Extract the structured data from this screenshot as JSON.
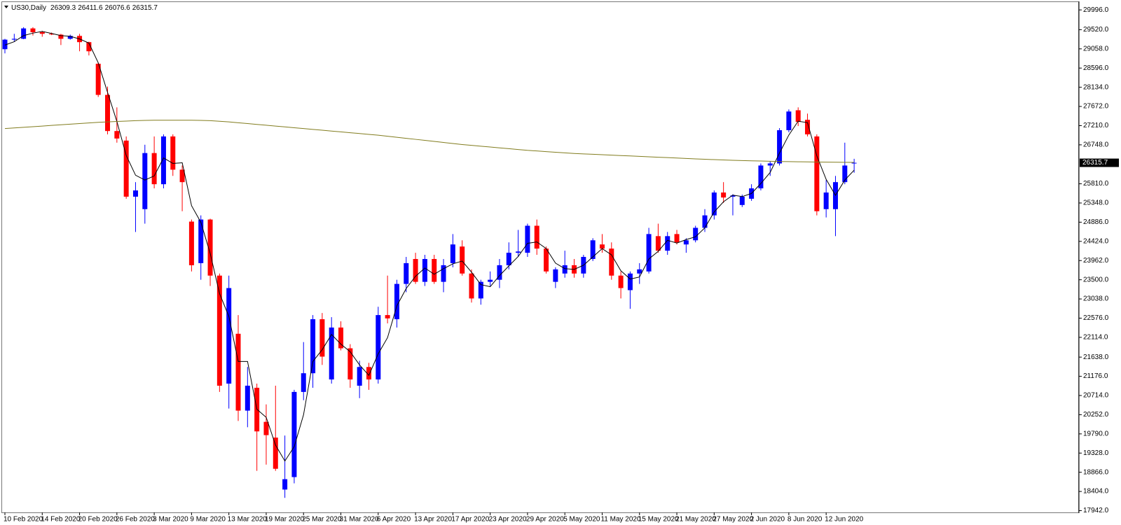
{
  "chart_data": {
    "type": "candlestick",
    "title": "US30,Daily",
    "categories": [
      "10 Feb 2020",
      null,
      null,
      null,
      "14 Feb 2020",
      null,
      null,
      null,
      "20 Feb 2020",
      null,
      null,
      null,
      "26 Feb 2020",
      null,
      null,
      null,
      "3 Mar 2020",
      null,
      null,
      null,
      "9 Mar 2020",
      null,
      null,
      null,
      "13 Mar 2020",
      null,
      null,
      null,
      "19 Mar 2020",
      null,
      null,
      null,
      "25 Mar 2020",
      null,
      null,
      null,
      "31 Mar 2020",
      null,
      null,
      null,
      "6 Apr 2020",
      null,
      null,
      null,
      "13 Apr 2020",
      null,
      null,
      null,
      "17 Apr 2020",
      null,
      null,
      null,
      "23 Apr 2020",
      null,
      null,
      null,
      "29 Apr 2020",
      null,
      null,
      null,
      "5 May 2020",
      null,
      null,
      null,
      "11 May 2020",
      null,
      null,
      null,
      "15 May 2020",
      null,
      null,
      null,
      "21 May 2020",
      null,
      null,
      null,
      "27 May 2020",
      null,
      null,
      null,
      "2 Jun 2020",
      null,
      null,
      null,
      "8 Jun 2020",
      null,
      null,
      null,
      "12 Jun 2020",
      null,
      null,
      null
    ],
    "open": [
      29050,
      29280,
      29300,
      29550,
      29460,
      29420,
      29400,
      29300,
      29370,
      29220,
      28700,
      27950,
      27080,
      26850,
      25500,
      25200,
      26550,
      25800,
      26950,
      26150,
      24900,
      23900,
      24950,
      23600,
      21000,
      22200,
      20350,
      20900,
      20080,
      19700,
      18450,
      18750,
      20800,
      21250,
      22550,
      21100,
      22350,
      21850,
      20950,
      21400,
      21100,
      22650,
      22550,
      23400,
      24000,
      23450,
      24000,
      23450,
      23900,
      24300,
      23650,
      23050,
      23450,
      23500,
      23850,
      24150,
      24150,
      24800,
      24250,
      23450,
      23650,
      23850,
      23650,
      24000,
      24350,
      24250,
      23600,
      23250,
      23650,
      23700,
      24550,
      24200,
      24600,
      24350,
      24450,
      24750,
      25050,
      25600,
      25500,
      25300,
      25450,
      25700,
      26250,
      26300,
      27100,
      27580,
      27350,
      26950,
      25200,
      25200,
      25850,
      26309.3
    ],
    "high": [
      29300,
      29420,
      29580,
      29580,
      29490,
      29450,
      29420,
      29400,
      29420,
      29230,
      28720,
      28150,
      27650,
      26950,
      25850,
      26750,
      26950,
      27000,
      27000,
      26250,
      24950,
      25050,
      24970,
      23650,
      23600,
      22650,
      21400,
      21000,
      20500,
      20950,
      19750,
      20850,
      22000,
      22650,
      22700,
      22600,
      22500,
      21950,
      21550,
      21500,
      22850,
      23600,
      23500,
      24050,
      24150,
      24100,
      24100,
      24000,
      24600,
      24450,
      23750,
      23500,
      23700,
      24000,
      24400,
      24700,
      24850,
      24950,
      24300,
      23800,
      24200,
      24000,
      24100,
      24500,
      24600,
      24400,
      23700,
      23700,
      23900,
      24750,
      24850,
      24650,
      24700,
      24500,
      24800,
      25200,
      25650,
      25850,
      25560,
      25550,
      25800,
      26300,
      26350,
      27150,
      27600,
      27650,
      27500,
      27000,
      25900,
      26000,
      26800,
      26411.6
    ],
    "low": [
      28950,
      29230,
      29290,
      29380,
      29350,
      29390,
      29150,
      29280,
      29000,
      28900,
      27900,
      27000,
      26800,
      25450,
      24650,
      24850,
      25700,
      25700,
      26000,
      25150,
      23700,
      23500,
      23350,
      20800,
      20400,
      20100,
      19950,
      18900,
      19050,
      18900,
      18250,
      18600,
      20600,
      20900,
      21450,
      21000,
      21800,
      20900,
      20650,
      20850,
      21000,
      22450,
      22350,
      23200,
      23400,
      23350,
      23400,
      23200,
      23800,
      23600,
      22950,
      22900,
      23350,
      23300,
      23750,
      24050,
      24050,
      24100,
      23650,
      23300,
      23550,
      23550,
      23550,
      23950,
      24150,
      23500,
      23050,
      22800,
      23400,
      23650,
      24150,
      24100,
      24350,
      24150,
      24400,
      24650,
      24950,
      25350,
      25050,
      25250,
      25400,
      25650,
      26000,
      26250,
      27050,
      27200,
      26950,
      25050,
      25000,
      24550,
      25800,
      26076.6
    ],
    "close": [
      29280,
      29300,
      29550,
      29460,
      29420,
      29410,
      29300,
      29370,
      29220,
      29000,
      27950,
      27080,
      26900,
      25500,
      25650,
      26550,
      25800,
      26950,
      26150,
      25850,
      23850,
      24950,
      23600,
      20950,
      23300,
      20350,
      20950,
      19850,
      19760,
      18950,
      18700,
      20800,
      21250,
      22550,
      21650,
      22350,
      21850,
      21100,
      21400,
      21100,
      22650,
      22570,
      23400,
      23900,
      23450,
      24000,
      23450,
      23850,
      24350,
      23650,
      23050,
      23450,
      23500,
      23850,
      24150,
      24180,
      24800,
      24250,
      23700,
      23750,
      23850,
      23650,
      24050,
      24450,
      24250,
      23600,
      23300,
      23650,
      23750,
      24600,
      24200,
      24550,
      24400,
      24450,
      24750,
      25050,
      25600,
      25480,
      25530,
      25500,
      25700,
      26250,
      26300,
      27100,
      27550,
      27300,
      27000,
      25150,
      25600,
      25850,
      26250,
      26315.7
    ],
    "up_color": "#0000ff",
    "down_color": "#ff0000",
    "overlays": [
      {
        "color": "#000000",
        "values": [
          29150,
          29230,
          29377,
          29437,
          29477,
          29430,
          29377,
          29360,
          29297,
          29197,
          28723,
          28010,
          27310,
          26493,
          26017,
          25900,
          26000,
          26433,
          26300,
          26317,
          25283,
          24883,
          24133,
          23167,
          22617,
          21533,
          21533,
          20383,
          20187,
          19520,
          19137,
          19483,
          20250,
          21533,
          21817,
          22183,
          21950,
          21767,
          21450,
          21200,
          21717,
          22107,
          22873,
          23290,
          23583,
          23783,
          23633,
          23767,
          23883,
          23950,
          23683,
          23383,
          23333,
          23600,
          23833,
          24060,
          24377,
          24410,
          24250,
          23900,
          23767,
          23750,
          23850,
          24050,
          24250,
          24100,
          23717,
          23517,
          23567,
          24000,
          24183,
          24450,
          24383,
          24467,
          24533,
          24750,
          25133,
          25377,
          25537,
          25503,
          25577,
          25817,
          26083,
          26550,
          26983,
          27317,
          27283,
          26483,
          25917,
          25533,
          25900,
          26139
        ]
      },
      {
        "color": "#817c1e",
        "values": [
          27140,
          27155,
          27170,
          27185,
          27200,
          27215,
          27230,
          27245,
          27260,
          27275,
          27290,
          27300,
          27310,
          27320,
          27330,
          27335,
          27340,
          27340,
          27340,
          27340,
          27340,
          27335,
          27330,
          27315,
          27300,
          27280,
          27260,
          27240,
          27220,
          27200,
          27180,
          27160,
          27140,
          27120,
          27100,
          27080,
          27060,
          27040,
          27020,
          27000,
          26980,
          26955,
          26930,
          26905,
          26880,
          26855,
          26830,
          26805,
          26780,
          26755,
          26735,
          26715,
          26695,
          26675,
          26655,
          26635,
          26615,
          26600,
          26585,
          26570,
          26555,
          26540,
          26530,
          26520,
          26510,
          26500,
          26490,
          26480,
          26470,
          26460,
          26450,
          26440,
          26430,
          26420,
          26410,
          26400,
          26392,
          26384,
          26376,
          26370,
          26364,
          26358,
          26352,
          26347,
          26343,
          26340,
          26337,
          26334,
          26332,
          26330,
          26328,
          26326
        ]
      }
    ],
    "ylim": [
      17900,
      30150
    ],
    "yticks": [
      {
        "value": 29996,
        "label": "29996.0"
      },
      {
        "value": 29520,
        "label": "29520.0"
      },
      {
        "value": 29058,
        "label": "29058.0"
      },
      {
        "value": 28596,
        "label": "28596.0"
      },
      {
        "value": 28134,
        "label": "28134.0"
      },
      {
        "value": 27672,
        "label": "27672.0"
      },
      {
        "value": 27210,
        "label": "27210.0"
      },
      {
        "value": 26748,
        "label": "26748.0"
      },
      {
        "value": 25810,
        "label": "25810.0"
      },
      {
        "value": 25348,
        "label": "25348.0"
      },
      {
        "value": 24886,
        "label": "24886.0"
      },
      {
        "value": 24424,
        "label": "24424.0"
      },
      {
        "value": 23962,
        "label": "23962.0"
      },
      {
        "value": 23500,
        "label": "23500.0"
      },
      {
        "value": 23038,
        "label": "23038.0"
      },
      {
        "value": 22576,
        "label": "22576.0"
      },
      {
        "value": 22114,
        "label": "22114.0"
      },
      {
        "value": 21638,
        "label": "21638.0"
      },
      {
        "value": 21176,
        "label": "21176.0"
      },
      {
        "value": 20714,
        "label": "20714.0"
      },
      {
        "value": 20252,
        "label": "20252.0"
      },
      {
        "value": 19790,
        "label": "19790.0"
      },
      {
        "value": 19328,
        "label": "19328.0"
      },
      {
        "value": 18866,
        "label": "18866.0"
      },
      {
        "value": 18404,
        "label": "18404.0"
      },
      {
        "value": 17942,
        "label": "17942.0"
      }
    ],
    "grid": false
  }
}
